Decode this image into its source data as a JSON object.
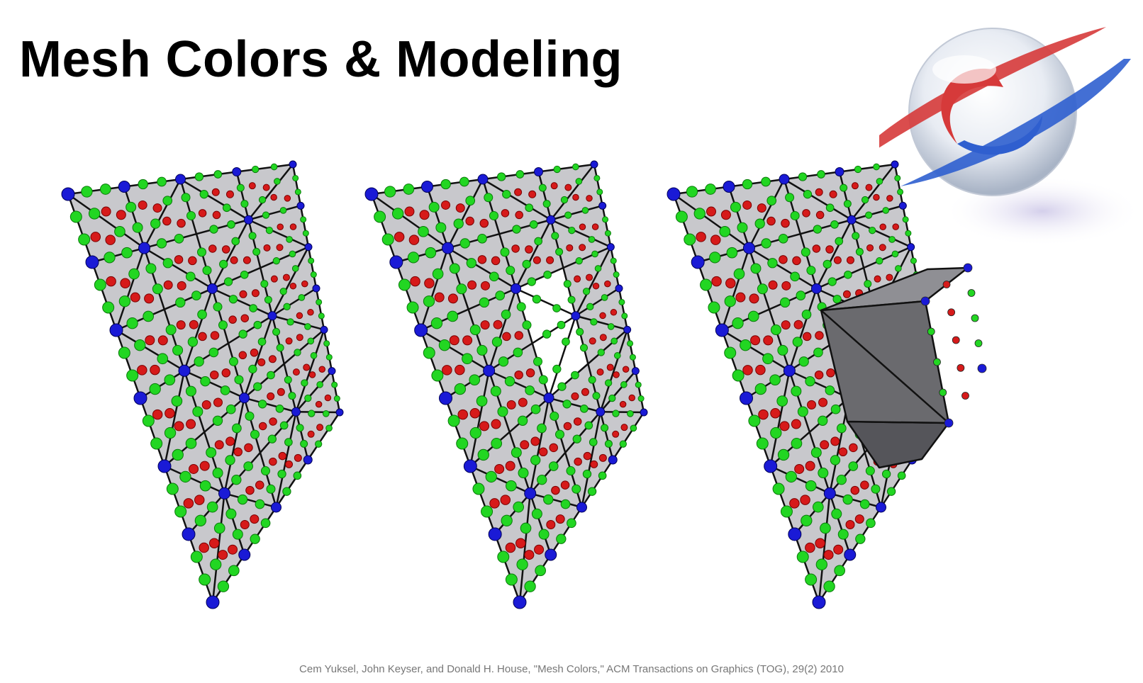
{
  "slide": {
    "title": "Mesh Colors & Modeling",
    "citation": "Cem Yuksel, John Keyser, and Donald H. House, \"Mesh Colors,\" ACM Transactions on Graphics (TOG), 29(2) 2010"
  },
  "logo": {
    "icon": "globe-swirl-logo",
    "colors": [
      "#d63a3a",
      "#2f5fcf",
      "#ffffff"
    ]
  },
  "figures": [
    {
      "name": "mesh-panel-full",
      "variant": "full"
    },
    {
      "name": "mesh-panel-hole",
      "variant": "hole"
    },
    {
      "name": "mesh-panel-extruded",
      "variant": "extruded"
    }
  ],
  "colors": {
    "surface": "#c8c8cc",
    "edge": "#111111",
    "vertex": "#1a1ad6",
    "edge_color": "#22d622",
    "face_color": "#d61a1a",
    "prism": "#6a6a6e"
  }
}
